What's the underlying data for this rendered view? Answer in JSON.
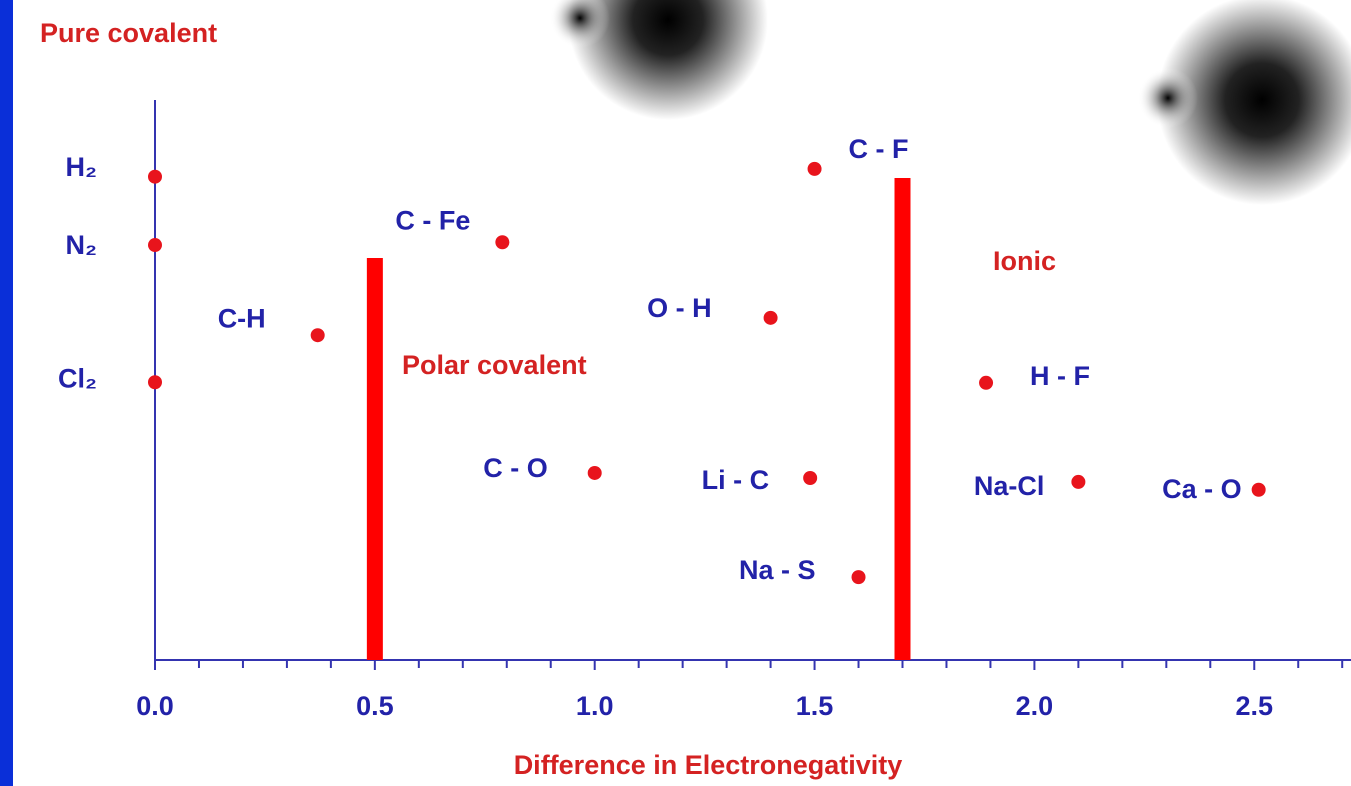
{
  "chart_data": {
    "type": "scatter",
    "x_label": "Difference in Electronegativity",
    "annotations": [
      "Pure covalent",
      "Polar covalent",
      "Ionic"
    ],
    "point_labels": [
      "H₂",
      "N₂",
      "Cl₂",
      "C-H",
      "C - Fe",
      "C - O",
      "O - H",
      "C - F",
      "Li - C",
      "Na - S",
      "H - F",
      "Na-Cl",
      "Ca - O"
    ],
    "x": [
      0.0,
      0.0,
      0.0,
      0.37,
      0.79,
      1.0,
      1.4,
      1.5,
      1.49,
      1.6,
      1.89,
      2.1,
      2.51
    ],
    "values": [
      86.3,
      74.1,
      49.6,
      58.0,
      74.6,
      33.4,
      61.1,
      87.7,
      32.5,
      14.8,
      49.5,
      31.8,
      30.4
    ],
    "point_color": "#e8141c",
    "boundaries": [
      0.5,
      1.7
    ],
    "boundary_color": "#ff0000",
    "xlim": [
      0,
      2.72
    ],
    "ylim": [
      0,
      100
    ],
    "xticks": [
      {
        "value": 0,
        "label": "0.0"
      },
      0.5,
      {
        "value": 1,
        "label": "1.0"
      },
      1.5,
      {
        "value": 2,
        "label": "2.0"
      },
      2.5
    ],
    "xminorticks": [
      0.1,
      0.2,
      0.3,
      0.4,
      0.6,
      0.7,
      0.8,
      0.9,
      1.1,
      1.2,
      1.3,
      1.4,
      1.6,
      1.7,
      1.8,
      1.9,
      2.1,
      2.2,
      2.3,
      2.4,
      2.6,
      2.7
    ]
  }
}
